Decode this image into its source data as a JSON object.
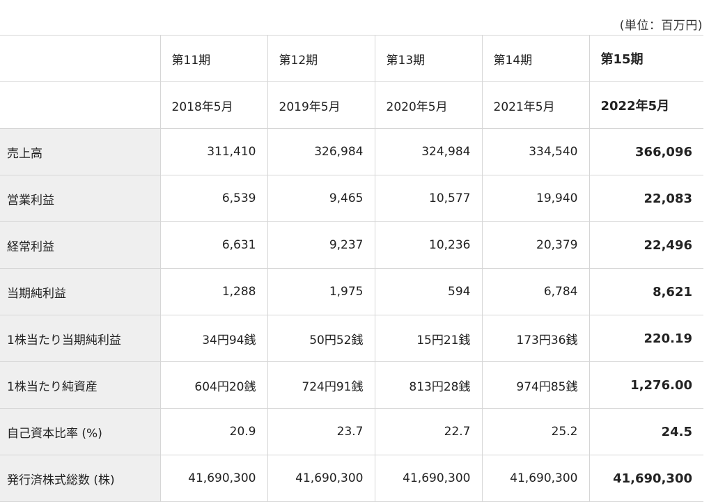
{
  "unit_note": "(単位：百万円)",
  "table": {
    "columns": [
      {
        "period": "第11期",
        "date": "2018年5月"
      },
      {
        "period": "第12期",
        "date": "2019年5月"
      },
      {
        "period": "第13期",
        "date": "2020年5月"
      },
      {
        "period": "第14期",
        "date": "2021年5月"
      },
      {
        "period": "第15期",
        "date": "2022年5月"
      }
    ],
    "rows": [
      {
        "label": "売上高",
        "values": [
          "311,410",
          "326,984",
          "324,984",
          "334,540",
          "366,096"
        ]
      },
      {
        "label": "営業利益",
        "values": [
          "6,539",
          "9,465",
          "10,577",
          "19,940",
          "22,083"
        ]
      },
      {
        "label": "経常利益",
        "values": [
          "6,631",
          "9,237",
          "10,236",
          "20,379",
          "22,496"
        ]
      },
      {
        "label": "当期純利益",
        "values": [
          "1,288",
          "1,975",
          "594",
          "6,784",
          "8,621"
        ]
      },
      {
        "label": "1株当たり当期純利益",
        "values": [
          "34円94銭",
          "50円52銭",
          "15円21銭",
          "173円36銭",
          "220.19"
        ]
      },
      {
        "label": "1株当たり純資産",
        "values": [
          "604円20銭",
          "724円91銭",
          "813円28銭",
          "974円85銭",
          "1,276.00"
        ]
      },
      {
        "label": "自己資本比率 (%)",
        "values": [
          "20.9",
          "23.7",
          "22.7",
          "25.2",
          "24.5"
        ]
      },
      {
        "label": "発行済株式総数 (株)",
        "values": [
          "41,690,300",
          "41,690,300",
          "41,690,300",
          "41,690,300",
          "41,690,300"
        ]
      }
    ]
  }
}
